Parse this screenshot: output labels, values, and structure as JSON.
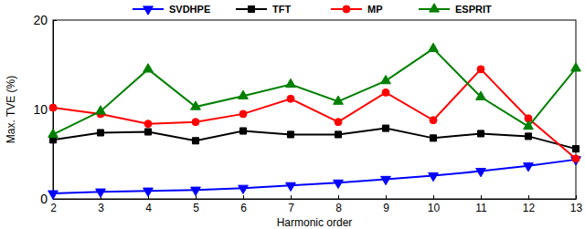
{
  "chart_data": {
    "type": "line",
    "x_label": "Harmonic order",
    "y_label": "Max. TVE (%)",
    "x": [
      2,
      3,
      4,
      5,
      6,
      7,
      8,
      9,
      10,
      11,
      12,
      13
    ],
    "xlim": [
      2,
      13
    ],
    "xticks": [
      2,
      3,
      4,
      5,
      6,
      7,
      8,
      9,
      10,
      11,
      12,
      13
    ],
    "ylim": [
      0,
      20
    ],
    "yticks": [
      0,
      10,
      20
    ],
    "legend": "top",
    "series": [
      {
        "name": "SVDHPE",
        "color": "#0000ff",
        "marker": "triangle-down",
        "values": [
          0.6,
          0.8,
          0.9,
          1.0,
          1.2,
          1.5,
          1.8,
          2.2,
          2.6,
          3.1,
          3.7,
          4.4
        ]
      },
      {
        "name": "TFT",
        "color": "#000000",
        "marker": "square",
        "values": [
          6.6,
          7.4,
          7.5,
          6.5,
          7.6,
          7.2,
          7.2,
          7.9,
          6.8,
          7.3,
          7.0,
          5.6
        ]
      },
      {
        "name": "MP",
        "color": "#ff0000",
        "marker": "circle",
        "values": [
          10.2,
          9.5,
          8.4,
          8.6,
          9.5,
          11.2,
          8.6,
          11.9,
          8.8,
          14.5,
          9.0,
          4.5
        ]
      },
      {
        "name": "ESPRIT",
        "color": "#008000",
        "marker": "triangle-up",
        "values": [
          7.2,
          9.8,
          14.5,
          10.3,
          11.5,
          12.8,
          10.9,
          13.2,
          16.8,
          11.4,
          8.1,
          14.6
        ]
      }
    ]
  }
}
